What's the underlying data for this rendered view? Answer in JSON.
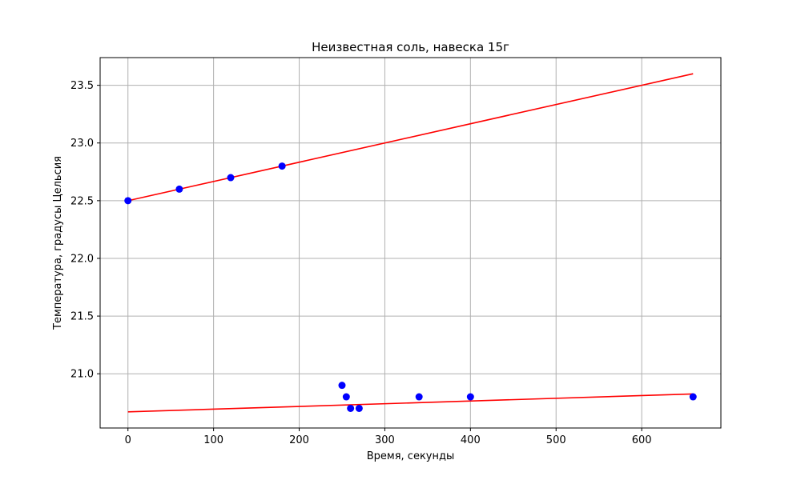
{
  "chart_data": {
    "type": "scatter",
    "title": "Неизвестная соль, навеска 15г",
    "xlabel": "Время, секунды",
    "ylabel": "Температура, градусы Цельсия",
    "xlim": [
      -32.5,
      692.5
    ],
    "ylim": [
      20.53,
      23.74
    ],
    "x_ticks": [
      0,
      100,
      200,
      300,
      400,
      500,
      600
    ],
    "y_ticks": [
      21.0,
      21.5,
      22.0,
      22.5,
      23.0,
      23.5
    ],
    "x_tick_labels": [
      "0",
      "100",
      "200",
      "300",
      "400",
      "500",
      "600"
    ],
    "y_tick_labels": [
      "21.0",
      "21.5",
      "22.0",
      "22.5",
      "23.0",
      "23.5"
    ],
    "grid": true,
    "series": [
      {
        "kind": "points",
        "color": "#0000ff",
        "points": [
          {
            "x": 0,
            "y": 22.5
          },
          {
            "x": 60,
            "y": 22.6
          },
          {
            "x": 120,
            "y": 22.7
          },
          {
            "x": 180,
            "y": 22.8
          },
          {
            "x": 250,
            "y": 20.9
          },
          {
            "x": 255,
            "y": 20.8
          },
          {
            "x": 260,
            "y": 20.7
          },
          {
            "x": 270,
            "y": 20.7
          },
          {
            "x": 340,
            "y": 20.8
          },
          {
            "x": 400,
            "y": 20.8
          },
          {
            "x": 660,
            "y": 20.8
          }
        ]
      },
      {
        "kind": "line",
        "color": "#ff0000",
        "points": [
          {
            "x": 0,
            "y": 22.5
          },
          {
            "x": 660,
            "y": 23.6
          }
        ]
      },
      {
        "kind": "line",
        "color": "#ff0000",
        "points": [
          {
            "x": 0,
            "y": 20.67
          },
          {
            "x": 660,
            "y": 20.825
          }
        ]
      }
    ]
  }
}
